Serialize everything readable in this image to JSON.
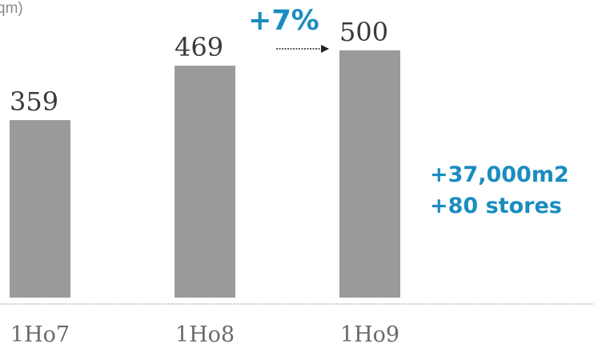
{
  "chart_data": {
    "type": "bar",
    "unit_label": "qm)",
    "categories": [
      "1H07",
      "1H08",
      "1H09"
    ],
    "category_labels": [
      "1Ho7",
      "1Ho8",
      "1Ho9"
    ],
    "values": [
      359,
      469,
      500
    ],
    "value_labels": [
      "359",
      "469",
      "500"
    ],
    "ylim": [
      0,
      500
    ],
    "bar_color": "#9b9a9a",
    "accent_color": "#1a8cc0",
    "grid": false,
    "annotations": {
      "growth": "+7%",
      "notes": [
        "+37,000m2",
        "+80 stores"
      ]
    }
  }
}
